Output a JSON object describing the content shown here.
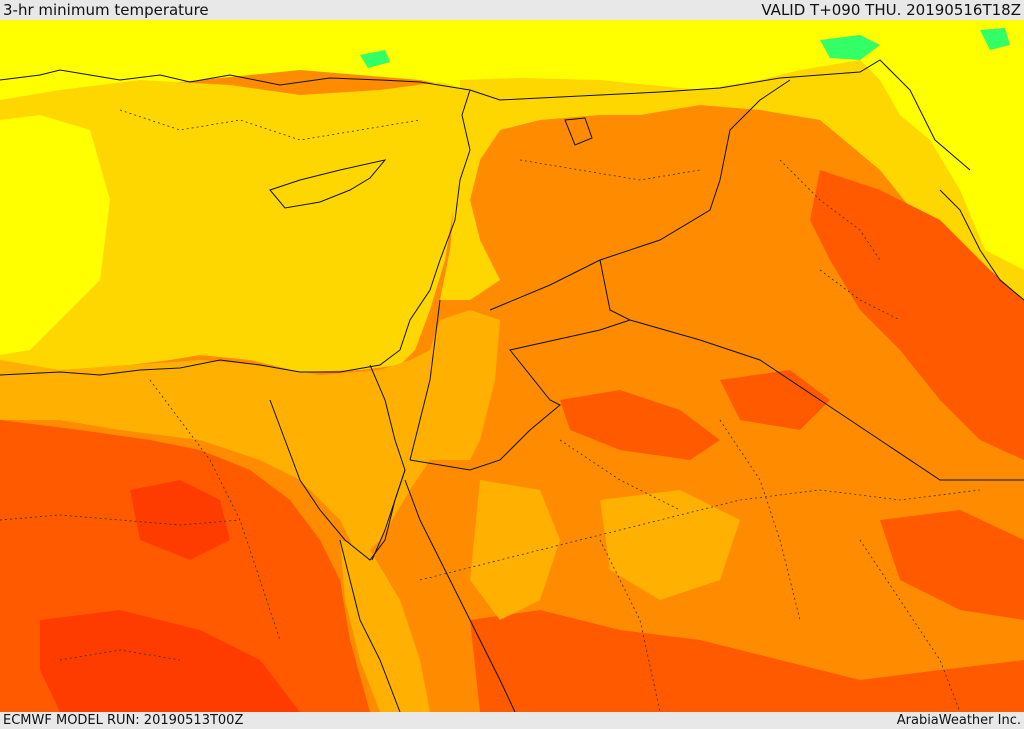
{
  "header": {
    "title": "3-hr minimum temperature",
    "valid": "VALID T+090 THU. 20190516T18Z"
  },
  "footer": {
    "model_run": "ECMWF MODEL RUN: 20190513T00Z",
    "credit": "ArabiaWeather Inc."
  },
  "palette": {
    "yellow": "#ffff00",
    "gold": "#ffd700",
    "amber": "#ffb000",
    "orange": "#ff8c00",
    "deep_orange": "#ff5a00",
    "red_orange": "#ff3c00",
    "green": "#33ff66",
    "line": "#111111"
  }
}
